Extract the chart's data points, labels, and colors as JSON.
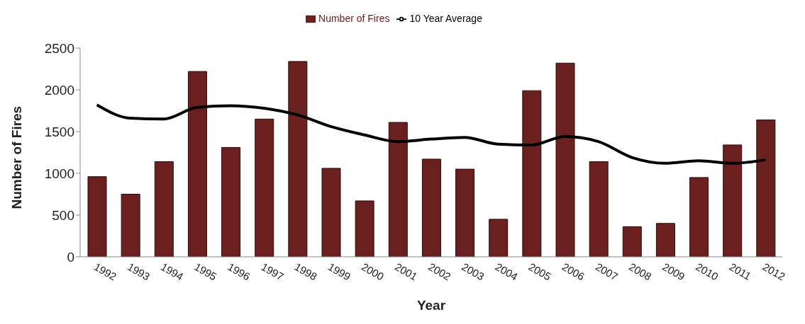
{
  "chart_data": {
    "type": "bar",
    "xlabel": "Year",
    "ylabel": "Number of Fires",
    "categories": [
      "1992",
      "1993",
      "1994",
      "1995",
      "1996",
      "1997",
      "1998",
      "1999",
      "2000",
      "2001",
      "2002",
      "2003",
      "2004",
      "2005",
      "2006",
      "2007",
      "2008",
      "2009",
      "2010",
      "2011",
      "2012"
    ],
    "series": [
      {
        "name": "Number of Fires",
        "color": "#6b2020",
        "values": [
          960,
          750,
          1140,
          2220,
          1310,
          1650,
          2340,
          1060,
          670,
          1610,
          1170,
          1050,
          450,
          1990,
          2320,
          1140,
          360,
          400,
          950,
          1340,
          1640
        ]
      },
      {
        "name": "10 Year Average",
        "type": "line",
        "color": "#000000",
        "values": [
          1820,
          1660,
          1650,
          1790,
          1810,
          1780,
          1700,
          1560,
          1460,
          1380,
          1410,
          1430,
          1350,
          1340,
          1440,
          1380,
          1190,
          1120,
          1150,
          1120,
          1160
        ]
      }
    ],
    "ylim": [
      0,
      2500
    ],
    "yticks": [
      0,
      500,
      1000,
      1500,
      2000,
      2500
    ],
    "grid": false,
    "legend": "top",
    "marker": "none",
    "line_style": "solid"
  }
}
